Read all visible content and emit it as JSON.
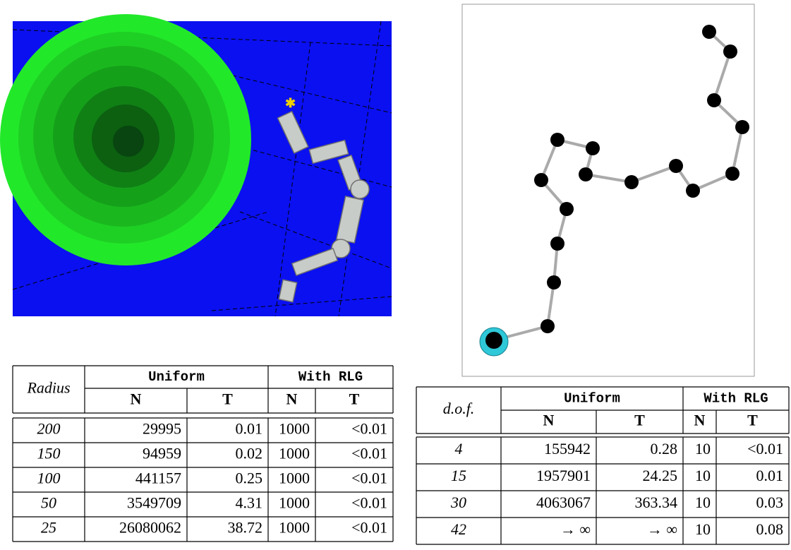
{
  "tables": [
    {
      "header": {
        "first": "Radius",
        "groups": [
          "Uniform",
          "With RLG"
        ],
        "subs": [
          "N",
          "T",
          "N",
          "T"
        ]
      },
      "rows": [
        [
          "200",
          "29995",
          "0.01",
          "1000",
          "<0.01"
        ],
        [
          "150",
          "94959",
          "0.02",
          "1000",
          "<0.01"
        ],
        [
          "100",
          "441157",
          "0.25",
          "1000",
          "<0.01"
        ],
        [
          "50",
          "3549709",
          "4.31",
          "1000",
          "<0.01"
        ],
        [
          "25",
          "26080062",
          "38.72",
          "1000",
          "<0.01"
        ]
      ]
    },
    {
      "header": {
        "first": "d.o.f.",
        "groups": [
          "Uniform",
          "With RLG"
        ],
        "subs": [
          "N",
          "T",
          "N",
          "T"
        ]
      },
      "rows": [
        [
          "4",
          "155942",
          "0.28",
          "10",
          "<0.01"
        ],
        [
          "15",
          "1957901",
          "24.25",
          "10",
          "0.01"
        ],
        [
          "30",
          "4063067",
          "363.34",
          "10",
          "0.03"
        ],
        [
          "42",
          "→ ∞",
          "→ ∞",
          "10",
          "0.08"
        ]
      ]
    }
  ]
}
